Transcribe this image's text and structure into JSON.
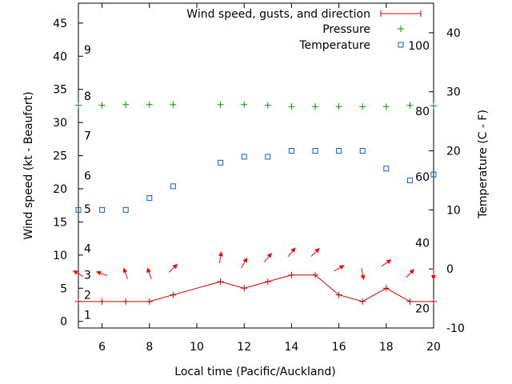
{
  "chart_data": {
    "type": "line",
    "xlabel": "Local time (Pacific/Auckland)",
    "ylabel": "Wind speed (kt - Beaufort)",
    "y2label": "Temperature (C - F)",
    "xlim": [
      5,
      20
    ],
    "ylim": [
      -1,
      48
    ],
    "y2lim": [
      -10,
      45
    ],
    "grid": false,
    "legend_position": "top-right",
    "x_ticks": [
      6,
      8,
      10,
      12,
      14,
      16,
      18,
      20
    ],
    "y_ticks": [
      0,
      5,
      10,
      15,
      20,
      25,
      30,
      35,
      40,
      45
    ],
    "y2_ticks": [
      -10,
      0,
      10,
      20,
      30,
      40
    ],
    "beaufort_labels": [
      {
        "label": "1",
        "value": 1
      },
      {
        "label": "2",
        "value": 4
      },
      {
        "label": "3",
        "value": 7
      },
      {
        "label": "4",
        "value": 11
      },
      {
        "label": "5",
        "value": 17
      },
      {
        "label": "6",
        "value": 22
      },
      {
        "label": "7",
        "value": 28
      },
      {
        "label": "8",
        "value": 34
      },
      {
        "label": "9",
        "value": 41
      }
    ],
    "fahrenheit_labels": [
      {
        "label": "20",
        "value": -6.7
      },
      {
        "label": "40",
        "value": 4.4
      },
      {
        "label": "60",
        "value": 15.6
      },
      {
        "label": "80",
        "value": 26.7
      },
      {
        "label": "100",
        "value": 37.8
      }
    ],
    "series": [
      {
        "name": "Wind speed, gusts, and direction",
        "color": "#cc0000",
        "x": [
          5,
          6,
          7,
          8,
          9,
          11,
          12,
          13,
          14,
          15,
          16,
          17,
          18,
          19,
          20
        ],
        "y": [
          3,
          3,
          3,
          3,
          4,
          6,
          5,
          6,
          7,
          7,
          4,
          3,
          5,
          3,
          3
        ]
      },
      {
        "name": "Pressure",
        "color": "#009900",
        "x": [
          5,
          6,
          7,
          8,
          9,
          11,
          12,
          13,
          14,
          15,
          16,
          17,
          18,
          19,
          20
        ],
        "y": [
          32.6,
          32.6,
          32.7,
          32.7,
          32.7,
          32.7,
          32.7,
          32.6,
          32.4,
          32.4,
          32.4,
          32.4,
          32.4,
          32.6,
          32.5
        ]
      },
      {
        "name": "Temperature",
        "color": "#0066cc",
        "x": [
          5,
          6,
          7,
          8,
          9,
          11,
          12,
          13,
          14,
          15,
          16,
          17,
          18,
          19,
          20
        ],
        "y": [
          10,
          10,
          10,
          12,
          14,
          18,
          19,
          19,
          20,
          20,
          20,
          20,
          17,
          15,
          16
        ]
      }
    ],
    "wind_direction_arrows": {
      "x": [
        5,
        6,
        7,
        8,
        9,
        11,
        12,
        13,
        14,
        15,
        16,
        17,
        18,
        19,
        20
      ],
      "angle_deg": [
        150,
        160,
        110,
        110,
        45,
        80,
        60,
        50,
        50,
        45,
        30,
        280,
        35,
        45,
        270
      ]
    }
  }
}
